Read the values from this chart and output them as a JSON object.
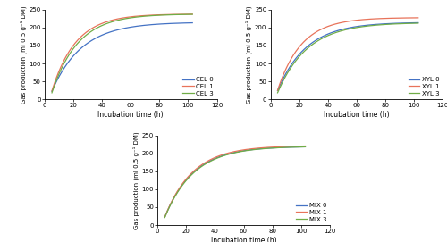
{
  "xlabel": "Incubation time (h)",
  "ylabel": "Gas production (ml 0.5 g⁻¹ DM)",
  "xlim": [
    0,
    120
  ],
  "ylim": [
    0,
    250
  ],
  "xticks": [
    0,
    20,
    40,
    60,
    80,
    100,
    120
  ],
  "yticks": [
    0,
    50,
    100,
    150,
    200,
    250
  ],
  "t_start": 5,
  "t_end": 103,
  "subplots": [
    {
      "label_prefix": "CEL",
      "series": [
        {
          "label": "CEL 0",
          "color": "#4472c4",
          "Vf": 215,
          "k": 0.048,
          "t0": 5.0,
          "y0": 22
        },
        {
          "label": "CEL 1",
          "color": "#e8735a",
          "Vf": 238,
          "k": 0.06,
          "t0": 5.0,
          "y0": 23
        },
        {
          "label": "CEL 3",
          "color": "#70ad47",
          "Vf": 238,
          "k": 0.055,
          "t0": 5.0,
          "y0": 18
        }
      ]
    },
    {
      "label_prefix": "XYL",
      "series": [
        {
          "label": "XYL 0",
          "color": "#4472c4",
          "Vf": 215,
          "k": 0.05,
          "t0": 5.0,
          "y0": 24
        },
        {
          "label": "XYL 1",
          "color": "#e8735a",
          "Vf": 228,
          "k": 0.06,
          "t0": 5.0,
          "y0": 25
        },
        {
          "label": "XYL 3",
          "color": "#70ad47",
          "Vf": 214,
          "k": 0.048,
          "t0": 5.0,
          "y0": 18
        }
      ]
    },
    {
      "label_prefix": "MIX",
      "series": [
        {
          "label": "MIX 0",
          "color": "#4472c4",
          "Vf": 220,
          "k": 0.05,
          "t0": 5.0,
          "y0": 22
        },
        {
          "label": "MIX 1",
          "color": "#e8735a",
          "Vf": 222,
          "k": 0.051,
          "t0": 5.0,
          "y0": 22
        },
        {
          "label": "MIX 3",
          "color": "#70ad47",
          "Vf": 220,
          "k": 0.049,
          "t0": 5.0,
          "y0": 21
        }
      ]
    }
  ]
}
